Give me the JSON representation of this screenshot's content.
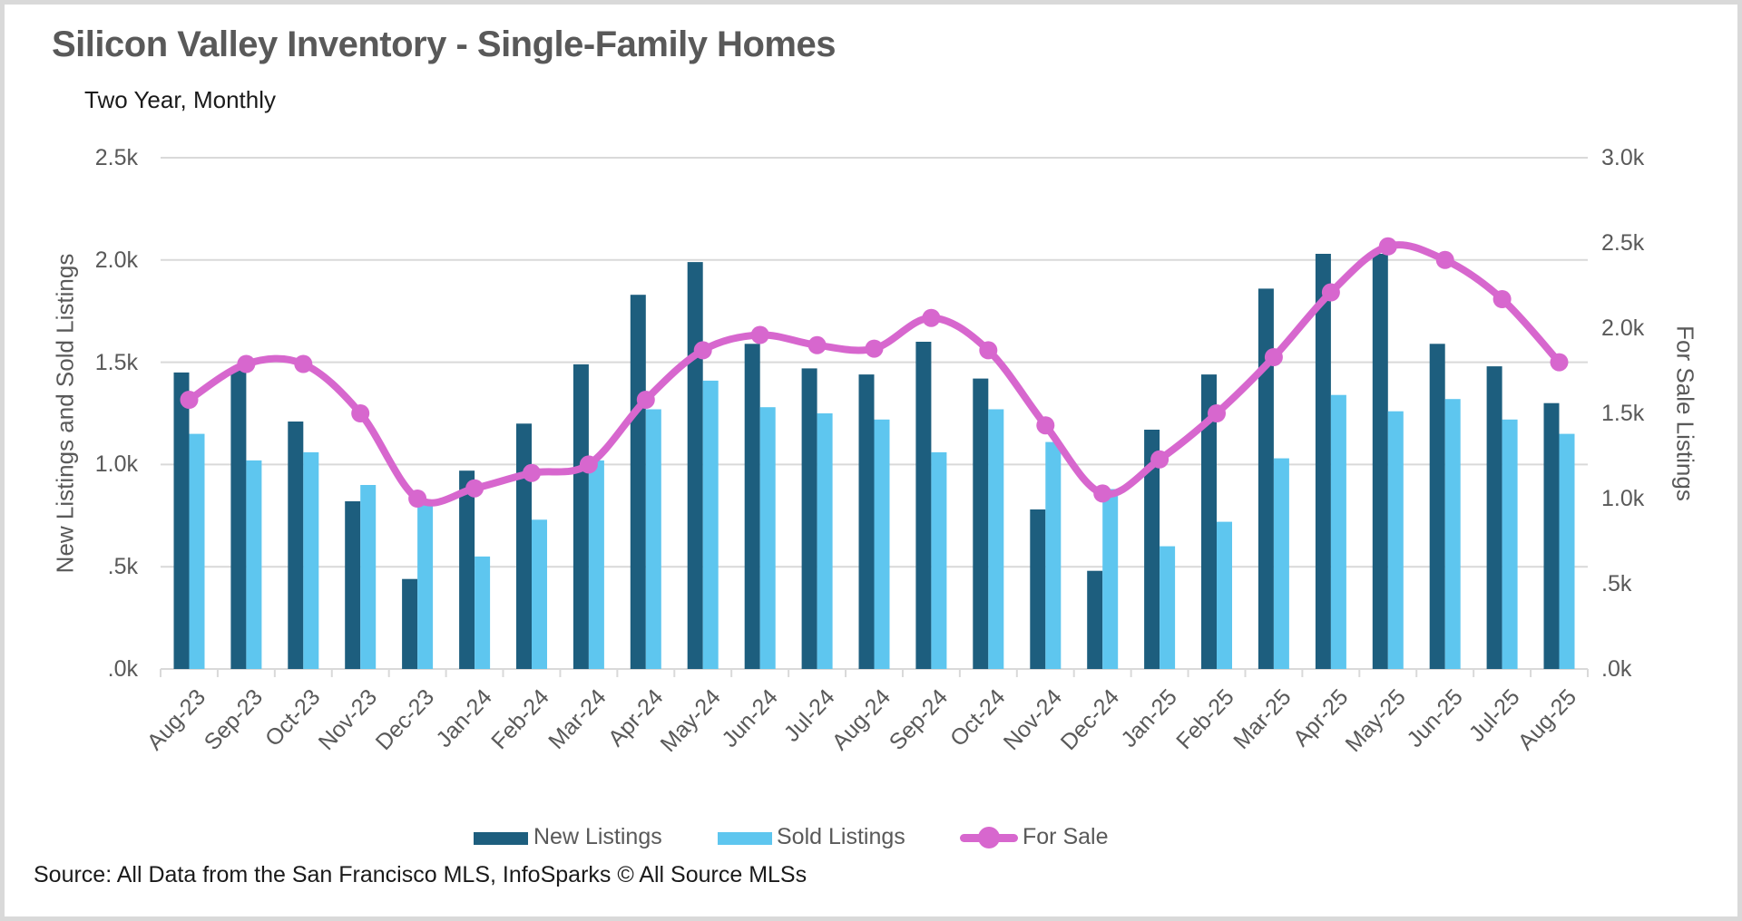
{
  "page": {
    "title": "Silicon Valley Inventory - Single-Family Homes",
    "subtitle": "Two Year, Monthly",
    "source": "Source: All Data from the San Francisco MLS, InfoSparks © All Source MLSs"
  },
  "colors": {
    "new_listings": "#1D5E7E",
    "sold_listings": "#5EC6EF",
    "for_sale": "#D767CE",
    "grid": "#D9D9D9",
    "axis_text": "#595959",
    "frame": "#D9D9D9"
  },
  "legend": {
    "new_listings": "New Listings",
    "sold_listings": "Sold Listings",
    "for_sale": "For Sale"
  },
  "chart_data": {
    "type": "bar",
    "subtype": "grouped bars with overlaid smoothed line",
    "title": "Silicon Valley Inventory - Single-Family Homes",
    "subtitle": "Two Year, Monthly",
    "categories": [
      "Aug-23",
      "Sep-23",
      "Oct-23",
      "Nov-23",
      "Dec-23",
      "Jan-24",
      "Feb-24",
      "Mar-24",
      "Apr-24",
      "May-24",
      "Jun-24",
      "Jul-24",
      "Aug-24",
      "Sep-24",
      "Oct-24",
      "Nov-24",
      "Dec-24",
      "Jan-25",
      "Feb-25",
      "Mar-25",
      "Apr-25",
      "May-25",
      "Jun-25",
      "Jul-25",
      "Aug-25"
    ],
    "series": [
      {
        "name": "New Listings",
        "type": "bar",
        "axis": "left",
        "color": "#1D5E7E",
        "values": [
          1450,
          1460,
          1210,
          820,
          440,
          970,
          1200,
          1490,
          1830,
          1990,
          1590,
          1470,
          1440,
          1600,
          1420,
          780,
          480,
          1170,
          1440,
          1860,
          2030,
          2030,
          1590,
          1480,
          1300
        ]
      },
      {
        "name": "Sold Listings",
        "type": "bar",
        "axis": "left",
        "color": "#5EC6EF",
        "values": [
          1150,
          1020,
          1060,
          900,
          800,
          550,
          730,
          1020,
          1270,
          1410,
          1280,
          1250,
          1220,
          1060,
          1270,
          1110,
          880,
          600,
          720,
          1030,
          1340,
          1260,
          1320,
          1220,
          1150
        ]
      },
      {
        "name": "For Sale",
        "type": "line",
        "axis": "right",
        "color": "#D767CE",
        "values": [
          1580,
          1790,
          1790,
          1500,
          1000,
          1060,
          1150,
          1200,
          1580,
          1870,
          1960,
          1900,
          1880,
          2060,
          1870,
          1430,
          1030,
          1230,
          1500,
          1830,
          2210,
          2480,
          2400,
          2170,
          1800
        ]
      }
    ],
    "left_axis": {
      "label": "New Listings and Sold Listings",
      "range": [
        0,
        2500
      ],
      "tick_step": 500,
      "ticks": [
        "2.5k",
        "2.0k",
        "1.5k",
        "1.0k",
        ".5k",
        ".0k"
      ],
      "grid": true
    },
    "right_axis": {
      "label": "For Sale Listings",
      "range": [
        0,
        3000
      ],
      "tick_step": 500,
      "ticks": [
        "3.0k",
        "2.5k",
        "2.0k",
        "1.5k",
        "1.0k",
        ".5k",
        ".0k"
      ],
      "grid": false
    },
    "legend_position": "bottom"
  }
}
